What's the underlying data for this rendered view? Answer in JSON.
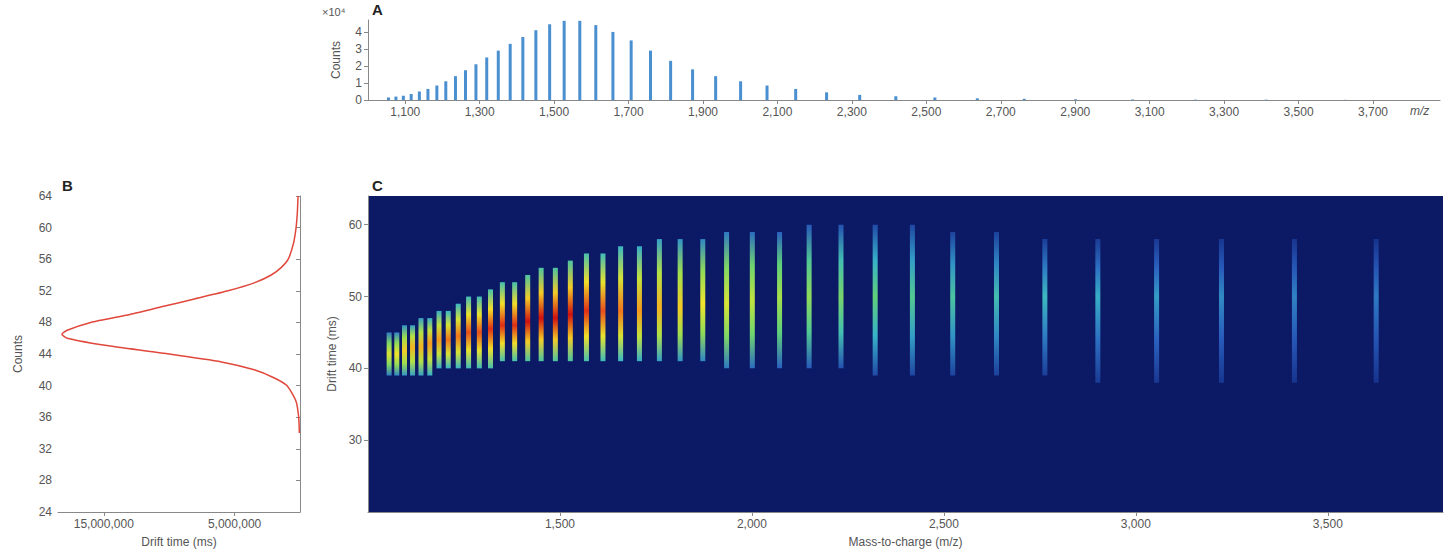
{
  "chart_data": [
    {
      "panel_label": "A",
      "type": "bar",
      "color": "#4a8fd0",
      "grid": false,
      "x": [
        1055,
        1075,
        1095,
        1116,
        1138,
        1161,
        1185,
        1209,
        1235,
        1262,
        1290,
        1319,
        1350,
        1382,
        1416,
        1451,
        1488,
        1527,
        1569,
        1612,
        1658,
        1707,
        1759,
        1813,
        1872,
        1934,
        2001,
        2072,
        2149,
        2232,
        2321,
        2418,
        2523,
        2637,
        2763,
        2901,
        3054,
        3223,
        3413,
        3626
      ],
      "values": [
        0.15,
        0.2,
        0.25,
        0.35,
        0.5,
        0.65,
        0.85,
        1.1,
        1.4,
        1.75,
        2.1,
        2.5,
        2.9,
        3.3,
        3.7,
        4.1,
        4.45,
        4.65,
        4.65,
        4.4,
        4.0,
        3.5,
        2.9,
        2.3,
        1.8,
        1.4,
        1.1,
        0.85,
        0.65,
        0.45,
        0.3,
        0.22,
        0.15,
        0.1,
        0.07,
        0.04,
        0.03,
        0.02,
        0.02,
        0.01
      ],
      "xlim": [
        1000,
        3880
      ],
      "xticks": [
        {
          "value": 1100,
          "label": "1,100"
        },
        {
          "value": 1300,
          "label": "1,300"
        },
        {
          "value": 1500,
          "label": "1,500"
        },
        {
          "value": 1700,
          "label": "1,700"
        },
        {
          "value": 1900,
          "label": "1,900"
        },
        {
          "value": 2100,
          "label": "2,100"
        },
        {
          "value": 2300,
          "label": "2,300"
        },
        {
          "value": 2500,
          "label": "2,500"
        },
        {
          "value": 2700,
          "label": "2,700"
        },
        {
          "value": 2900,
          "label": "2,900"
        },
        {
          "value": 3100,
          "label": "3,100"
        },
        {
          "value": 3300,
          "label": "3,300"
        },
        {
          "value": 3500,
          "label": "3,500"
        },
        {
          "value": 3700,
          "label": "3,700"
        }
      ],
      "ylim": [
        0,
        4.7
      ],
      "yticks": [
        0,
        1,
        2,
        3,
        4
      ],
      "y_multiplier": "×10⁴",
      "y_label": "Counts",
      "x_label": "m/z"
    },
    {
      "panel_label": "B",
      "type": "line",
      "orientation": "horizontal",
      "color": "#e0483c",
      "grid": false,
      "y": [
        34,
        36,
        38,
        40,
        41,
        42,
        43,
        44,
        45,
        46,
        46.5,
        47,
        48,
        49,
        50,
        51,
        52,
        53,
        54,
        55,
        56,
        58,
        60,
        62,
        64
      ],
      "values": [
        50000,
        100000,
        300000,
        1000000,
        2000000,
        3500000,
        6000000,
        10000000,
        14500000,
        17800000,
        18200000,
        17800000,
        16000000,
        13000000,
        10500000,
        8000000,
        5500000,
        3500000,
        2200000,
        1400000,
        900000,
        500000,
        300000,
        200000,
        150000
      ],
      "xlim": [
        18500000,
        0
      ],
      "xticks": [
        {
          "value": 15000000,
          "label": "15,000,000"
        },
        {
          "value": 5000000,
          "label": "5,000,000"
        }
      ],
      "ylim": [
        24,
        64
      ],
      "yticks": [
        24,
        28,
        32,
        36,
        40,
        44,
        48,
        52,
        56,
        60,
        64
      ],
      "x_label": "Drift time (ms)",
      "y_label": "Counts"
    },
    {
      "panel_label": "C",
      "type": "heatmap",
      "grid": false,
      "x": [
        1055,
        1075,
        1095,
        1116,
        1138,
        1161,
        1185,
        1209,
        1235,
        1262,
        1290,
        1319,
        1350,
        1382,
        1416,
        1451,
        1488,
        1527,
        1569,
        1612,
        1658,
        1707,
        1759,
        1813,
        1872,
        1934,
        2001,
        2072,
        2149,
        2232,
        2321,
        2418,
        2523,
        2637,
        2763,
        2901,
        3054,
        3223,
        3413,
        3626
      ],
      "drift_low": [
        39,
        39,
        39,
        39,
        39,
        39,
        40,
        40,
        40,
        40,
        40,
        40,
        41,
        41,
        41,
        41,
        41,
        41,
        41,
        41,
        41,
        41,
        41,
        41,
        41,
        40,
        40,
        40,
        40,
        40,
        39,
        39,
        39,
        39,
        39,
        38,
        38,
        38,
        38,
        38
      ],
      "drift_high": [
        45,
        45,
        46,
        46,
        47,
        47,
        48,
        48,
        49,
        50,
        50,
        51,
        52,
        52,
        53,
        54,
        54,
        55,
        56,
        56,
        57,
        57,
        58,
        58,
        58,
        59,
        59,
        59,
        60,
        60,
        60,
        60,
        59,
        59,
        58,
        58,
        58,
        58,
        58,
        58
      ],
      "drift_peak": [
        42,
        42,
        42.5,
        43,
        43,
        43.5,
        44,
        44,
        44.5,
        45,
        45,
        45.5,
        46,
        46,
        46.5,
        47,
        47,
        47.5,
        48,
        48,
        48,
        48,
        48.5,
        48.5,
        49,
        49,
        49.5,
        50,
        50,
        50,
        50,
        50,
        50,
        50,
        50,
        50,
        50,
        50,
        50,
        50
      ],
      "intensity": [
        6,
        6.5,
        7,
        7.5,
        7.5,
        8,
        8,
        8.5,
        8.5,
        9,
        9,
        9.5,
        9.5,
        9.5,
        10,
        10,
        10,
        10,
        9.5,
        9,
        8.5,
        8,
        7.5,
        7,
        6.5,
        6,
        5.5,
        5,
        4.5,
        4,
        3.5,
        3.2,
        3,
        2.8,
        2.6,
        2.4,
        2.2,
        2,
        1.9,
        1.8
      ],
      "intensity_range": [
        0,
        10
      ],
      "xlim": [
        1000,
        3800
      ],
      "xticks": [
        {
          "value": 1500,
          "label": "1,500"
        },
        {
          "value": 2000,
          "label": "2,000"
        },
        {
          "value": 2500,
          "label": "2,500"
        },
        {
          "value": 3000,
          "label": "3,000"
        },
        {
          "value": 3500,
          "label": "3,500"
        }
      ],
      "ylim": [
        20,
        64
      ],
      "yticks": [
        30,
        40,
        50,
        60
      ],
      "x_label": "Mass-to-charge (m/z)",
      "y_label": "Drift time (ms)"
    }
  ]
}
